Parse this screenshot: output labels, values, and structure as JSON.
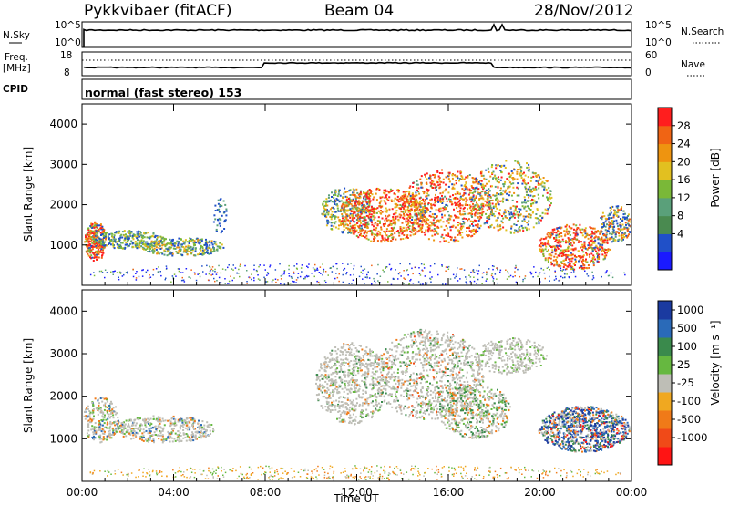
{
  "header": {
    "station": "Pykkvibaer (fitACF)",
    "beam": "Beam 04",
    "date": "28/Nov/2012"
  },
  "noise_panel": {
    "left_label": "N.Sky",
    "right_label": "N.Search",
    "ticks_left": [
      "10^5",
      "10^0"
    ],
    "ticks_right": [
      "10^5",
      "10^0"
    ]
  },
  "freq_panel": {
    "left_label_1": "Freq.",
    "left_label_2": "[MHz]",
    "right_label": "Nave",
    "ticks_left": [
      "18",
      "8"
    ],
    "ticks_right": [
      "60",
      "0"
    ]
  },
  "cpid": {
    "label": "CPID",
    "mode": "normal (fast stereo) 153"
  },
  "colors": {
    "power_scale": [
      "#1a1aff",
      "#2050c8",
      "#4a8a50",
      "#5aa07a",
      "#7ab838",
      "#e2c020",
      "#ee9410",
      "#f06414",
      "#ff1e1e"
    ],
    "velocity_scale": [
      "#1a3aa0",
      "#2a6ab8",
      "#3a8a4c",
      "#66b840",
      "#bebeb6",
      "#f0a820",
      "#f07a18",
      "#f04a18",
      "#ff1414"
    ]
  },
  "chart_data": [
    {
      "type": "heatmap",
      "title": "Power",
      "ylabel": "Slant Range [km]",
      "y_ticks": [
        "1000",
        "2000",
        "3000",
        "4000"
      ],
      "ylim": [
        0,
        4500
      ],
      "x_ticks": [
        "00:00",
        "04:00",
        "08:00",
        "12:00",
        "16:00",
        "20:00",
        "00:00"
      ],
      "colorbar": {
        "label": "Power [dB]",
        "ticks": [
          "4",
          "8",
          "12",
          "16",
          "20",
          "24",
          "28"
        ]
      }
    },
    {
      "type": "heatmap",
      "title": "Velocity",
      "ylabel": "Slant Range [km]",
      "y_ticks": [
        "1000",
        "2000",
        "3000",
        "4000"
      ],
      "ylim": [
        0,
        4500
      ],
      "x_ticks": [
        "00:00",
        "04:00",
        "08:00",
        "12:00",
        "16:00",
        "20:00",
        "00:00"
      ],
      "xlabel": "Time UT",
      "colorbar": {
        "label": "Velocity [m s⁻¹]",
        "ticks": [
          "1000",
          "500",
          "100",
          "25",
          "-25",
          "-100",
          "-500",
          "-1000"
        ]
      }
    }
  ]
}
